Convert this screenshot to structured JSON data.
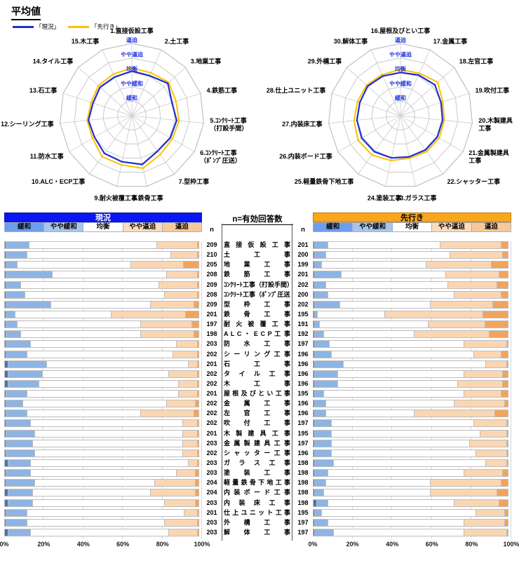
{
  "title": "平均値",
  "legend": {
    "current": "「現況」",
    "future": "「先行き」"
  },
  "bar_headers": {
    "current": "現況",
    "future": "先行き"
  },
  "mid": {
    "title": "n=有効回答数",
    "n_label": "n"
  },
  "colors": {
    "current_line": "#1f2fd0",
    "future_line": "#ffc000",
    "header_current_bg": "#0b16f2",
    "header_current_text": "#ffffff",
    "header_future_bg": "#f9a61c",
    "header_future_text": "#000000",
    "level_label": "#2233dd",
    "grid": "#c9c9c9",
    "legend_cells": [
      "#6d9eeb",
      "#a8c6ea",
      "#ffffff",
      "#fbdcbd",
      "#f6c99c"
    ],
    "bar_segments": [
      "#4472c4",
      "#8eb4e3",
      "#ffffff",
      "#fbd6b2",
      "#f3a45c"
    ]
  },
  "chart_data": {
    "radars": [
      {
        "type": "radar",
        "levels": [
          "緩和",
          "やや緩和",
          "均衡",
          "やや逼迫",
          "逼迫"
        ],
        "value_range": [
          0,
          5
        ],
        "categories": [
          [
            "1.直接仮設工事"
          ],
          [
            "2.土工事"
          ],
          [
            "3.地業工事"
          ],
          [
            "4.鉄筋工事"
          ],
          [
            "5.ｺﾝｸﾘｰﾄ工事",
            "（打設手間）"
          ],
          [
            "6.ｺﾝｸﾘｰﾄ工事",
            "（ﾎﾟﾝﾌﾟ圧送）"
          ],
          [
            "7.型枠工事"
          ],
          [
            "8.鉄骨工事"
          ],
          [
            "9.耐火被覆工事"
          ],
          [
            "10.ALC・ECP工事"
          ],
          [
            "11.防水工事"
          ],
          [
            "12.シーリング工事"
          ],
          [
            "13.石工事"
          ],
          [
            "14.タイル工事"
          ],
          [
            "15.木工事"
          ]
        ],
        "series": [
          {
            "name": "現況",
            "values": [
              3.09,
              3.03,
              3.35,
              2.92,
              3.12,
              3.07,
              3.03,
              3.45,
              3.26,
              3.23,
              2.98,
              3.02,
              2.83,
              2.95,
              2.92
            ]
          },
          {
            "name": "先行き",
            "values": [
              3.3,
              3.25,
              3.45,
              3.21,
              3.29,
              3.23,
              3.33,
              3.72,
              3.48,
              3.51,
              3.14,
              3.11,
              2.96,
              3.12,
              3.15
            ]
          }
        ]
      },
      {
        "type": "radar",
        "levels": [
          "緩和",
          "やや緩和",
          "均衡",
          "やや逼迫",
          "逼迫"
        ],
        "value_range": [
          0,
          5
        ],
        "categories": [
          [
            "16.屋根及びとい工事"
          ],
          [
            "17.金属工事"
          ],
          [
            "18.左官工事"
          ],
          [
            "19.吹付工事"
          ],
          [
            "20.木製建具",
            "工事"
          ],
          [
            "21.金属製建具",
            "工事"
          ],
          [
            "22.シャッター工事"
          ],
          [
            "23.ガラス工事"
          ],
          [
            "24.塗装工事"
          ],
          [
            "25.軽量鉄骨下地工事"
          ],
          [
            "26.内装ボード工事"
          ],
          [
            "27.内装床工事"
          ],
          [
            "28.仕上ユニット工事"
          ],
          [
            "29.外構工事"
          ],
          [
            "30.解体工事"
          ]
        ],
        "series": [
          {
            "name": "現況",
            "values": [
              2.99,
              3.08,
              3.2,
              2.95,
              2.93,
              2.94,
              2.93,
              2.91,
              2.99,
              3.08,
              3.1,
              3.03,
              2.96,
              3.06,
              3.01
            ]
          },
          {
            "name": "先行き",
            "values": [
              3.2,
              3.22,
              3.47,
              3.08,
              3.05,
              3.1,
              3.07,
              3.01,
              3.17,
              3.36,
              3.39,
              3.23,
              3.13,
              3.16,
              3.12
            ]
          }
        ]
      }
    ],
    "stacked_bars": {
      "type": "bar",
      "stack_categories": [
        "緩和",
        "やや緩和",
        "均衡",
        "やや逼迫",
        "逼迫"
      ],
      "x_ticks": [
        "0%",
        "20%",
        "40%",
        "60%",
        "80%",
        "100%"
      ],
      "x_range": [
        0,
        100
      ],
      "rows": [
        {
          "name": "直 接 仮 設 工 事",
          "n_current": 209,
          "n_future": 201,
          "current": [
            1,
            12,
            65,
            21,
            1
          ],
          "future": [
            1,
            7,
            57,
            31,
            4
          ]
        },
        {
          "name": "土 工 事",
          "n_current": 210,
          "n_future": 200,
          "current": [
            1,
            11,
            73,
            14,
            1
          ],
          "future": [
            1,
            6,
            63,
            27,
            3
          ]
        },
        {
          "name": "地 業 工 事",
          "n_current": 205,
          "n_future": 199,
          "current": [
            1,
            6,
            58,
            27,
            8
          ],
          "future": [
            1,
            4,
            53,
            33,
            9
          ]
        },
        {
          "name": "鉄 筋 工 事",
          "n_current": 208,
          "n_future": 201,
          "current": [
            1,
            24,
            58,
            16,
            1
          ],
          "future": [
            1,
            14,
            53,
            27,
            5
          ]
        },
        {
          "name": "ｺﾝｸﾘｰﾄ工事（打設手間）",
          "n_current": 209,
          "n_future": 202,
          "current": [
            1,
            8,
            70,
            20,
            1
          ],
          "future": [
            1,
            6,
            62,
            25,
            6
          ]
        },
        {
          "name": "ｺﾝｸﾘｰﾄ工事（ﾎﾟﾝﾌﾟ圧送）",
          "n_current": 208,
          "n_future": 200,
          "current": [
            1,
            10,
            71,
            17,
            1
          ],
          "future": [
            1,
            7,
            64,
            24,
            4
          ]
        },
        {
          "name": "型 枠 工 事",
          "n_current": 209,
          "n_future": 202,
          "current": [
            1,
            23,
            51,
            22,
            3
          ],
          "future": [
            1,
            13,
            46,
            32,
            8
          ]
        },
        {
          "name": "鉄 骨 工 事",
          "n_current": 201,
          "n_future": 195,
          "current": [
            1,
            5,
            49,
            38,
            7
          ],
          "future": [
            1,
            2,
            34,
            50,
            13
          ]
        },
        {
          "name": "耐 火 被 覆 工 事",
          "n_current": 197,
          "n_future": 191,
          "current": [
            1,
            6,
            63,
            26,
            4
          ],
          "future": [
            1,
            3,
            55,
            29,
            12
          ]
        },
        {
          "name": "A L C ・ E C P 工 事",
          "n_current": 198,
          "n_future": 192,
          "current": [
            1,
            8,
            61,
            27,
            3
          ],
          "future": [
            1,
            5,
            46,
            38,
            10
          ]
        },
        {
          "name": "防 水 工 事",
          "n_current": 203,
          "n_future": 197,
          "current": [
            1,
            13,
            74,
            11,
            1
          ],
          "future": [
            1,
            8,
            68,
            22,
            1
          ]
        },
        {
          "name": "シ ー リ ン グ 工 事",
          "n_current": 202,
          "n_future": 196,
          "current": [
            1,
            11,
            74,
            13,
            1
          ],
          "future": [
            1,
            9,
            72,
            14,
            4
          ]
        },
        {
          "name": "石 工 事",
          "n_current": 201,
          "n_future": 196,
          "current": [
            2,
            20,
            72,
            5,
            1
          ],
          "future": [
            1,
            15,
            72,
            11,
            1
          ]
        },
        {
          "name": "タ イ ル 工 事",
          "n_current": 202,
          "n_future": 196,
          "current": [
            2,
            18,
            64,
            15,
            1
          ],
          "future": [
            1,
            12,
            64,
            20,
            3
          ]
        },
        {
          "name": "木 工 事",
          "n_current": 202,
          "n_future": 196,
          "current": [
            2,
            16,
            71,
            10,
            1
          ],
          "future": [
            1,
            12,
            61,
            23,
            3
          ]
        },
        {
          "name": "屋 根 及 び と い 工 事",
          "n_current": 201,
          "n_future": 195,
          "current": [
            1,
            11,
            77,
            10,
            1
          ],
          "future": [
            1,
            5,
            71,
            19,
            4
          ]
        },
        {
          "name": "金 属 工 事",
          "n_current": 202,
          "n_future": 196,
          "current": [
            1,
            9,
            73,
            15,
            2
          ],
          "future": [
            1,
            6,
            65,
            26,
            2
          ]
        },
        {
          "name": "左 官 工 事",
          "n_current": 202,
          "n_future": 196,
          "current": [
            1,
            11,
            58,
            27,
            3
          ],
          "future": [
            1,
            6,
            45,
            41,
            7
          ]
        },
        {
          "name": "吹 付 工 事",
          "n_current": 202,
          "n_future": 197,
          "current": [
            1,
            13,
            77,
            8,
            1
          ],
          "future": [
            1,
            9,
            72,
            17,
            1
          ]
        },
        {
          "name": "木 製 建 具 工 事",
          "n_current": 201,
          "n_future": 195,
          "current": [
            1,
            15,
            75,
            8,
            1
          ],
          "future": [
            1,
            9,
            75,
            14,
            1
          ]
        },
        {
          "name": "金 属 製 建 具 工 事",
          "n_current": 203,
          "n_future": 197,
          "current": [
            1,
            14,
            76,
            8,
            1
          ],
          "future": [
            1,
            9,
            70,
            19,
            1
          ]
        },
        {
          "name": "シ ャ ッ タ ー 工 事",
          "n_current": 202,
          "n_future": 196,
          "current": [
            1,
            15,
            75,
            8,
            1
          ],
          "future": [
            1,
            9,
            73,
            16,
            1
          ]
        },
        {
          "name": "ガ ラ ス 工 事",
          "n_current": 203,
          "n_future": 198,
          "current": [
            2,
            12,
            80,
            5,
            1
          ],
          "future": [
            1,
            10,
            77,
            11,
            1
          ]
        },
        {
          "name": "塗 装 工 事",
          "n_current": 203,
          "n_future": 198,
          "current": [
            1,
            13,
            74,
            10,
            2
          ],
          "future": [
            1,
            7,
            69,
            20,
            3
          ]
        },
        {
          "name": "軽 量 鉄 骨 下 地 工 事",
          "n_current": 204,
          "n_future": 198,
          "current": [
            1,
            15,
            61,
            21,
            2
          ],
          "future": [
            1,
            6,
            53,
            36,
            4
          ]
        },
        {
          "name": "内 装 ボ ー ド 工 事",
          "n_current": 204,
          "n_future": 198,
          "current": [
            2,
            13,
            60,
            23,
            2
          ],
          "future": [
            1,
            5,
            54,
            34,
            6
          ]
        },
        {
          "name": "内 装 床 工 事",
          "n_current": 203,
          "n_future": 198,
          "current": [
            2,
            13,
            67,
            16,
            2
          ],
          "future": [
            2,
            6,
            64,
            23,
            5
          ]
        },
        {
          "name": "仕 上 ユ ニ ッ ト 工 事",
          "n_current": 201,
          "n_future": 195,
          "current": [
            1,
            11,
            80,
            7,
            1
          ],
          "future": [
            1,
            4,
            78,
            15,
            2
          ]
        },
        {
          "name": "外 構 工 事",
          "n_current": 203,
          "n_future": 197,
          "current": [
            1,
            11,
            70,
            17,
            1
          ],
          "future": [
            1,
            7,
            69,
            21,
            2
          ]
        },
        {
          "name": "解 体 工 事",
          "n_current": 203,
          "n_future": 197,
          "current": [
            2,
            12,
            70,
            15,
            1
          ],
          "future": [
            1,
            10,
            66,
            22,
            1
          ]
        }
      ]
    }
  }
}
